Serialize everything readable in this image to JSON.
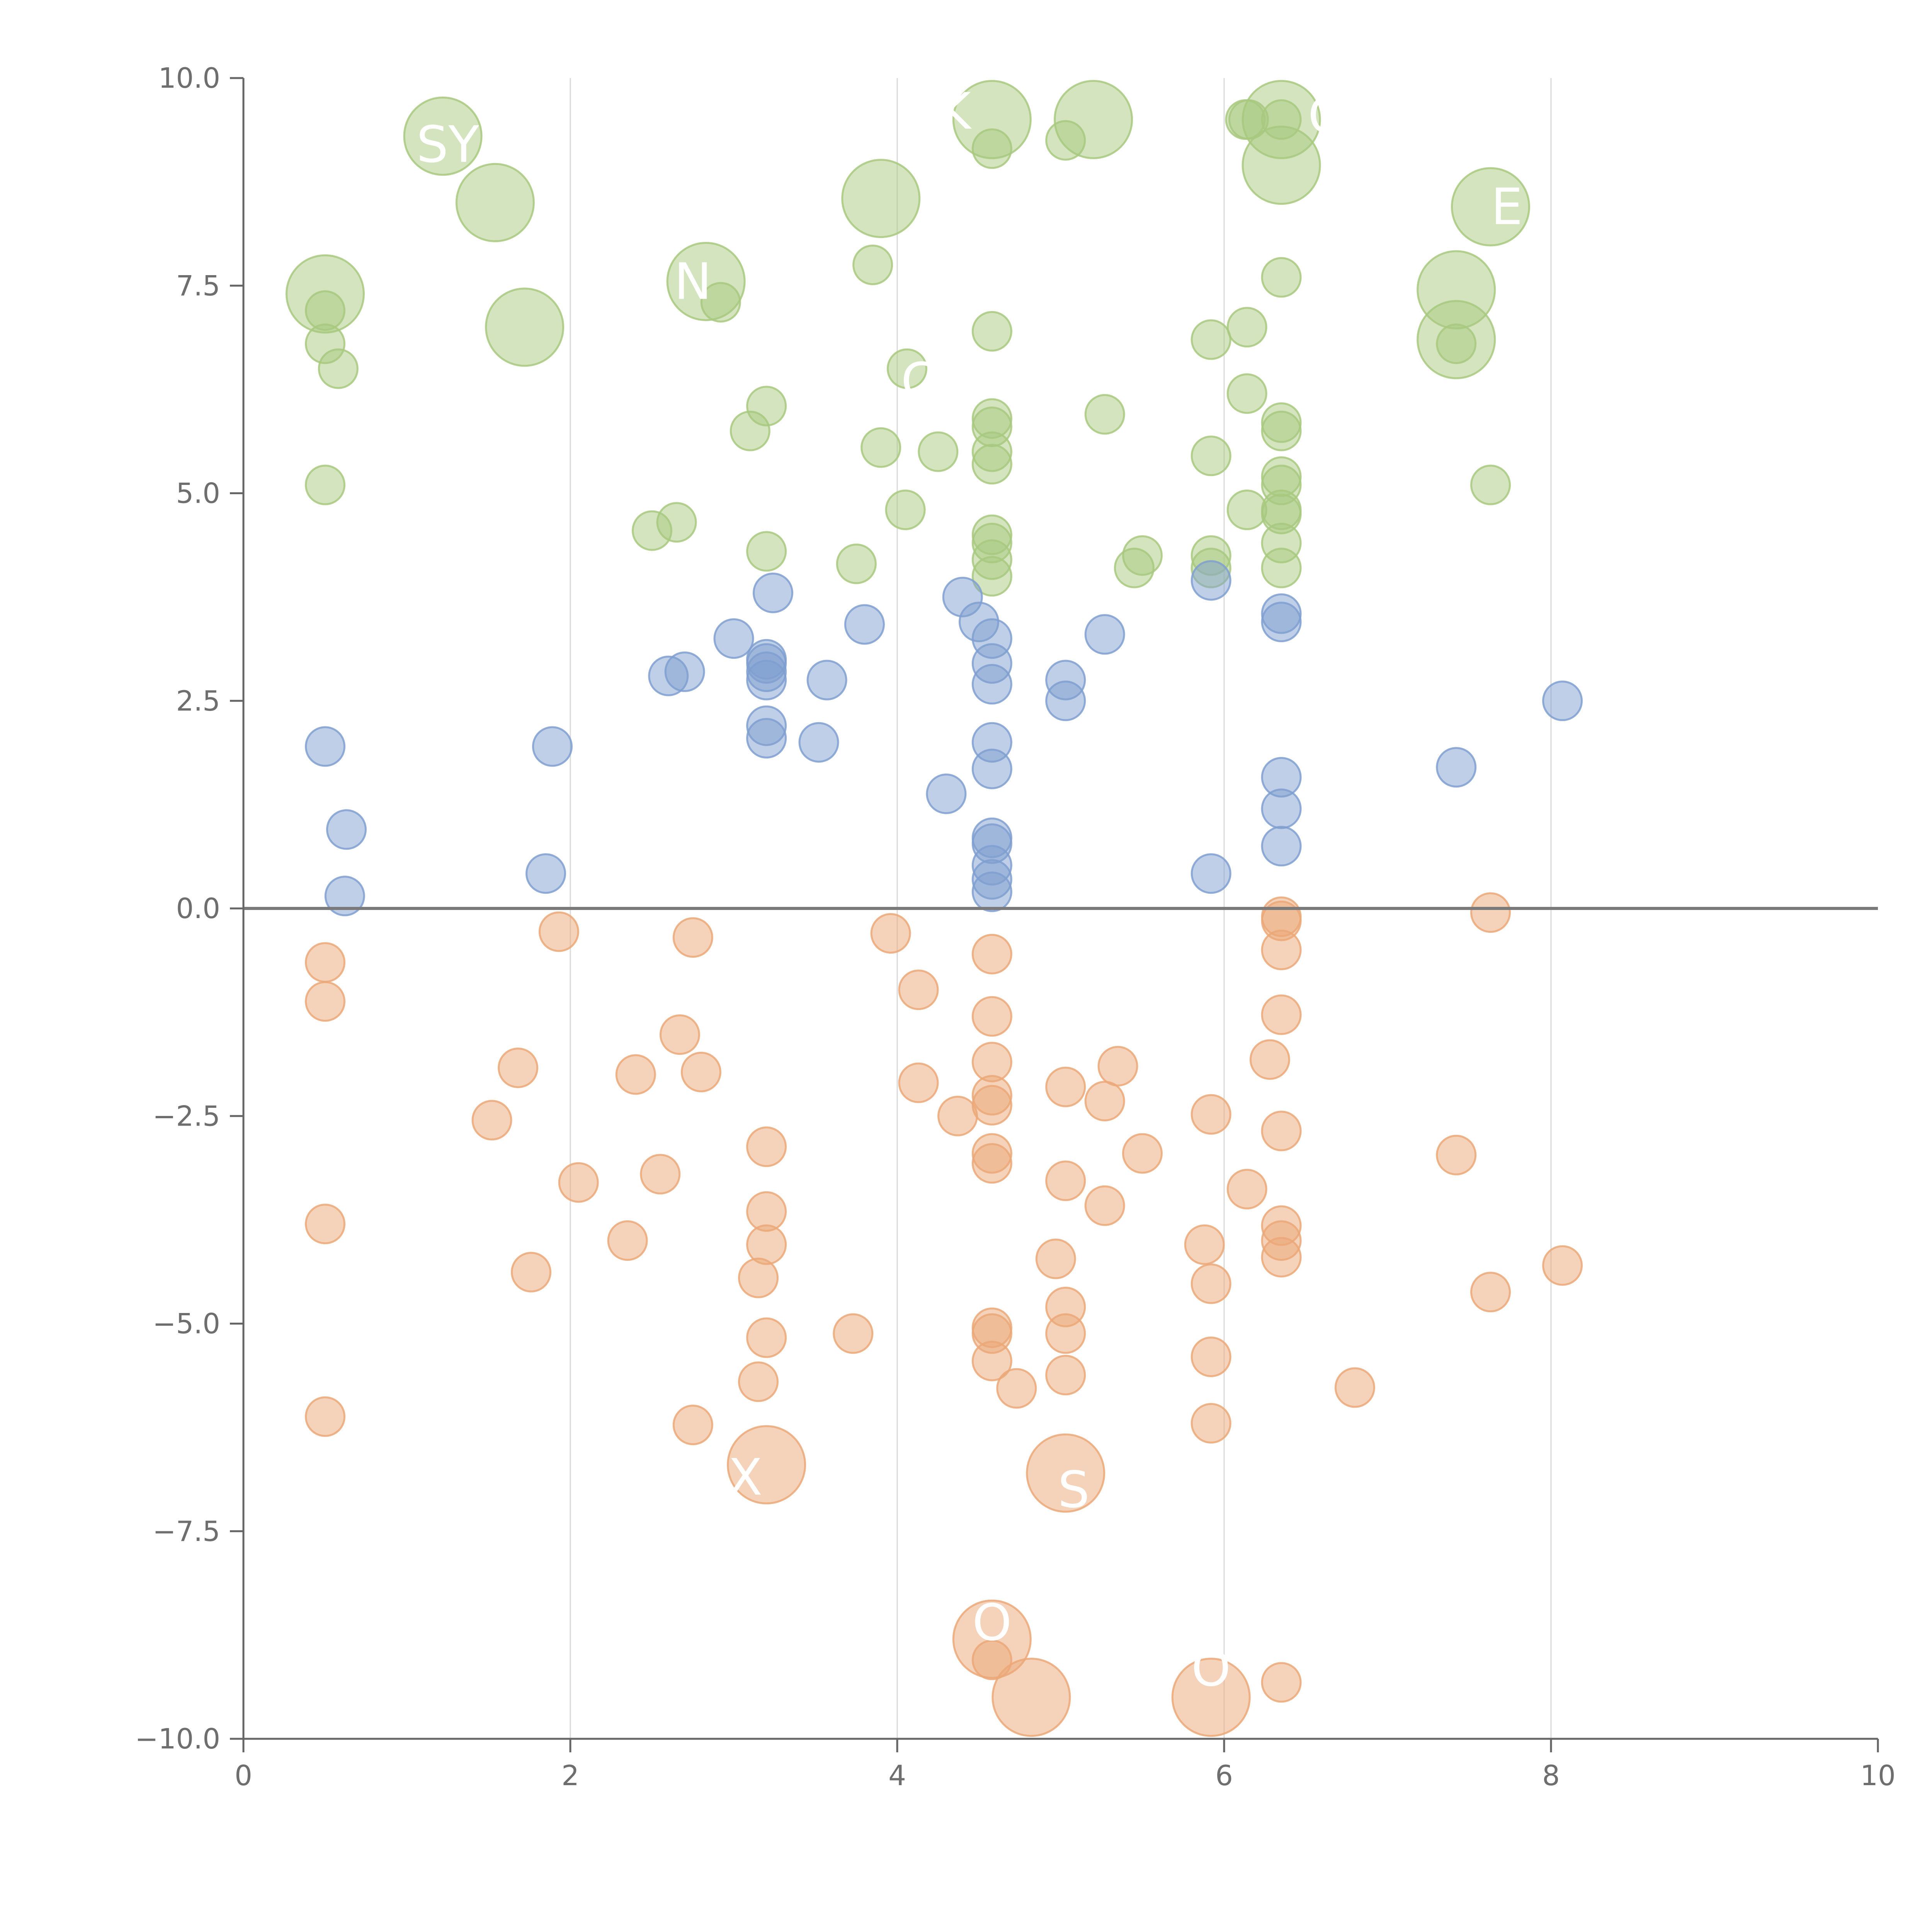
{
  "chart_data": {
    "type": "scatter",
    "title": "",
    "xlabel": "",
    "ylabel": "",
    "xlim": [
      0,
      10
    ],
    "ylim": [
      -10,
      10
    ],
    "grid": "vertical",
    "legend": "none",
    "x_ticks": [
      "0",
      "2",
      "4",
      "6",
      "8",
      "10"
    ],
    "y_ticks": [
      "10.0",
      "7.5",
      "5.0",
      "2.5",
      "0.0",
      "−2.5",
      "−5.0",
      "−7.5",
      "−10.0"
    ],
    "colors": {
      "positive_high": "#a8c97f",
      "positive_low": "#7f9fd0",
      "negative": "#eba878",
      "axis": "#666666",
      "grid": "#d9d9d9",
      "zero_line": "#7a7a7a",
      "label": "#ffffff"
    },
    "series": [
      {
        "name": "green",
        "color": "#a8c97f",
        "points": [
          [
            0.5,
            7.4,
            2
          ],
          [
            0.5,
            7.2,
            1
          ],
          [
            0.5,
            6.8,
            1
          ],
          [
            0.58,
            6.5,
            1
          ],
          [
            0.5,
            5.1,
            1
          ],
          [
            1.22,
            9.3,
            2
          ],
          [
            1.54,
            8.5,
            2
          ],
          [
            1.72,
            7.0,
            2
          ],
          [
            2.5,
            4.55,
            1
          ],
          [
            2.65,
            4.65,
            1
          ],
          [
            2.83,
            7.55,
            2
          ],
          [
            2.92,
            7.3,
            1
          ],
          [
            3.1,
            5.75,
            1
          ],
          [
            3.2,
            6.05,
            1
          ],
          [
            3.2,
            4.3,
            1
          ],
          [
            3.75,
            4.15,
            1
          ],
          [
            3.85,
            7.75,
            1
          ],
          [
            3.9,
            5.55,
            1
          ],
          [
            3.9,
            8.55,
            2
          ],
          [
            4.05,
            4.8,
            1
          ],
          [
            4.06,
            6.5,
            1
          ],
          [
            4.25,
            5.5,
            1
          ],
          [
            4.58,
            9.5,
            2
          ],
          [
            4.58,
            9.15,
            1
          ],
          [
            4.58,
            6.95,
            1
          ],
          [
            4.58,
            5.9,
            1
          ],
          [
            4.58,
            5.8,
            1
          ],
          [
            4.58,
            5.5,
            1
          ],
          [
            4.58,
            5.35,
            1
          ],
          [
            4.58,
            4.5,
            1
          ],
          [
            4.58,
            4.4,
            1
          ],
          [
            4.58,
            4.2,
            1
          ],
          [
            4.58,
            4.0,
            1
          ],
          [
            5.03,
            9.25,
            1
          ],
          [
            5.2,
            9.5,
            2
          ],
          [
            5.27,
            5.95,
            1
          ],
          [
            5.45,
            4.1,
            1
          ],
          [
            5.5,
            4.25,
            1
          ],
          [
            5.92,
            6.85,
            1
          ],
          [
            5.92,
            5.45,
            1
          ],
          [
            5.92,
            4.25,
            1
          ],
          [
            5.92,
            4.1,
            1
          ],
          [
            6.13,
            9.5,
            1
          ],
          [
            6.15,
            9.5,
            1
          ],
          [
            6.14,
            7.0,
            1
          ],
          [
            6.14,
            6.2,
            1
          ],
          [
            6.14,
            4.8,
            1
          ],
          [
            6.35,
            9.5,
            2
          ],
          [
            6.35,
            8.95,
            2
          ],
          [
            6.35,
            9.5,
            1
          ],
          [
            6.35,
            7.6,
            1
          ],
          [
            6.35,
            5.85,
            1
          ],
          [
            6.35,
            5.75,
            1
          ],
          [
            6.35,
            5.2,
            1
          ],
          [
            6.35,
            5.1,
            1
          ],
          [
            6.35,
            4.8,
            1
          ],
          [
            6.35,
            4.75,
            1
          ],
          [
            6.35,
            4.4,
            1
          ],
          [
            6.35,
            4.1,
            1
          ],
          [
            7.42,
            7.45,
            2
          ],
          [
            7.42,
            6.85,
            2
          ],
          [
            7.42,
            6.8,
            1
          ],
          [
            7.63,
            8.45,
            2
          ],
          [
            7.63,
            5.1,
            1
          ]
        ]
      },
      {
        "name": "blue",
        "color": "#7f9fd0",
        "points": [
          [
            0.5,
            1.95,
            1
          ],
          [
            0.63,
            0.95,
            1
          ],
          [
            0.62,
            0.15,
            1
          ],
          [
            1.85,
            0.42,
            1
          ],
          [
            1.89,
            1.95,
            1
          ],
          [
            2.6,
            2.8,
            1
          ],
          [
            2.7,
            2.85,
            1
          ],
          [
            3.0,
            3.25,
            1
          ],
          [
            3.2,
            3.0,
            1
          ],
          [
            3.2,
            2.95,
            1
          ],
          [
            3.2,
            2.85,
            1
          ],
          [
            3.2,
            2.75,
            1
          ],
          [
            3.2,
            2.2,
            1
          ],
          [
            3.2,
            2.05,
            1
          ],
          [
            3.24,
            3.8,
            1
          ],
          [
            3.52,
            2.0,
            1
          ],
          [
            3.57,
            2.75,
            1
          ],
          [
            3.8,
            3.42,
            1
          ],
          [
            4.3,
            1.38,
            1
          ],
          [
            4.4,
            3.75,
            1
          ],
          [
            4.5,
            3.45,
            1
          ],
          [
            4.58,
            3.25,
            1
          ],
          [
            4.58,
            2.95,
            1
          ],
          [
            4.58,
            2.7,
            1
          ],
          [
            4.58,
            2.0,
            1
          ],
          [
            4.58,
            1.68,
            1
          ],
          [
            4.58,
            0.85,
            1
          ],
          [
            4.58,
            0.78,
            1
          ],
          [
            4.58,
            0.52,
            1
          ],
          [
            4.58,
            0.35,
            1
          ],
          [
            4.58,
            0.2,
            1
          ],
          [
            5.03,
            2.75,
            1
          ],
          [
            5.03,
            2.5,
            1
          ],
          [
            5.27,
            3.3,
            1
          ],
          [
            5.92,
            3.95,
            1
          ],
          [
            5.92,
            0.42,
            1
          ],
          [
            6.35,
            3.55,
            1
          ],
          [
            6.35,
            3.45,
            1
          ],
          [
            6.35,
            1.58,
            1
          ],
          [
            6.35,
            1.2,
            1
          ],
          [
            6.35,
            0.75,
            1
          ],
          [
            7.42,
            1.7,
            1
          ],
          [
            8.07,
            2.5,
            1
          ]
        ]
      },
      {
        "name": "orange",
        "color": "#eba878",
        "points": [
          [
            0.5,
            -0.65,
            1
          ],
          [
            0.5,
            -1.12,
            1
          ],
          [
            0.5,
            -3.8,
            1
          ],
          [
            0.5,
            -6.12,
            1
          ],
          [
            1.52,
            -2.55,
            1
          ],
          [
            1.68,
            -1.92,
            1
          ],
          [
            1.76,
            -4.38,
            1
          ],
          [
            1.93,
            -0.28,
            1
          ],
          [
            2.05,
            -3.3,
            1
          ],
          [
            2.35,
            -4.0,
            1
          ],
          [
            2.4,
            -2.0,
            1
          ],
          [
            2.55,
            -3.2,
            1
          ],
          [
            2.67,
            -1.52,
            1
          ],
          [
            2.75,
            -0.35,
            1
          ],
          [
            2.75,
            -6.22,
            1
          ],
          [
            2.8,
            -1.97,
            1
          ],
          [
            3.15,
            -4.45,
            1
          ],
          [
            3.15,
            -5.7,
            1
          ],
          [
            3.2,
            -2.87,
            1
          ],
          [
            3.2,
            -3.65,
            1
          ],
          [
            3.2,
            -4.05,
            1
          ],
          [
            3.2,
            -5.17,
            1
          ],
          [
            3.2,
            -6.7,
            2
          ],
          [
            3.73,
            -5.12,
            1
          ],
          [
            3.96,
            -0.3,
            1
          ],
          [
            4.13,
            -0.98,
            1
          ],
          [
            4.13,
            -2.1,
            1
          ],
          [
            4.37,
            -2.5,
            1
          ],
          [
            4.58,
            -0.55,
            1
          ],
          [
            4.58,
            -1.3,
            1
          ],
          [
            4.58,
            -1.85,
            1
          ],
          [
            4.58,
            -2.25,
            1
          ],
          [
            4.58,
            -2.37,
            1
          ],
          [
            4.58,
            -2.95,
            1
          ],
          [
            4.58,
            -3.07,
            1
          ],
          [
            4.58,
            -5.05,
            1
          ],
          [
            4.58,
            -5.12,
            1
          ],
          [
            4.58,
            -5.45,
            1
          ],
          [
            4.58,
            -8.8,
            2
          ],
          [
            4.58,
            -9.05,
            1
          ],
          [
            4.73,
            -5.78,
            1
          ],
          [
            4.82,
            -9.5,
            2
          ],
          [
            4.97,
            -4.22,
            1
          ],
          [
            5.03,
            -2.15,
            1
          ],
          [
            5.03,
            -3.28,
            1
          ],
          [
            5.03,
            -4.8,
            1
          ],
          [
            5.03,
            -5.12,
            1
          ],
          [
            5.03,
            -5.62,
            1
          ],
          [
            5.03,
            -6.8,
            2
          ],
          [
            5.27,
            -2.32,
            1
          ],
          [
            5.27,
            -3.58,
            1
          ],
          [
            5.35,
            -1.9,
            1
          ],
          [
            5.5,
            -2.95,
            1
          ],
          [
            5.88,
            -4.05,
            1
          ],
          [
            5.92,
            -2.48,
            1
          ],
          [
            5.92,
            -4.52,
            1
          ],
          [
            5.92,
            -5.4,
            1
          ],
          [
            5.92,
            -6.2,
            1
          ],
          [
            5.92,
            -9.5,
            2
          ],
          [
            6.14,
            -3.38,
            1
          ],
          [
            6.28,
            -1.82,
            1
          ],
          [
            6.35,
            -0.1,
            1
          ],
          [
            6.35,
            -0.15,
            1
          ],
          [
            6.35,
            -0.5,
            1
          ],
          [
            6.35,
            -1.28,
            1
          ],
          [
            6.35,
            -2.68,
            1
          ],
          [
            6.35,
            -3.82,
            1
          ],
          [
            6.35,
            -4.0,
            1
          ],
          [
            6.35,
            -4.2,
            1
          ],
          [
            6.35,
            -9.32,
            1
          ],
          [
            6.8,
            -5.77,
            1
          ],
          [
            7.42,
            -2.97,
            1
          ],
          [
            7.63,
            -0.05,
            1
          ],
          [
            7.63,
            -4.62,
            1
          ],
          [
            8.07,
            -4.3,
            1
          ]
        ]
      }
    ],
    "annotations": [
      {
        "text": "SY",
        "x": 1.25,
        "y": 9.2
      },
      {
        "text": "K",
        "x": 4.35,
        "y": 9.6
      },
      {
        "text": "C",
        "x": 6.62,
        "y": 9.55
      },
      {
        "text": "E",
        "x": 7.73,
        "y": 8.45
      },
      {
        "text": "N",
        "x": 2.75,
        "y": 7.55
      },
      {
        "text": "C",
        "x": 4.13,
        "y": 6.35
      },
      {
        "text": "X",
        "x": 3.07,
        "y": -6.85
      },
      {
        "text": "S",
        "x": 5.08,
        "y": -7.0
      },
      {
        "text": "O",
        "x": 4.58,
        "y": -8.6
      },
      {
        "text": "O",
        "x": 5.92,
        "y": -9.15
      }
    ]
  }
}
